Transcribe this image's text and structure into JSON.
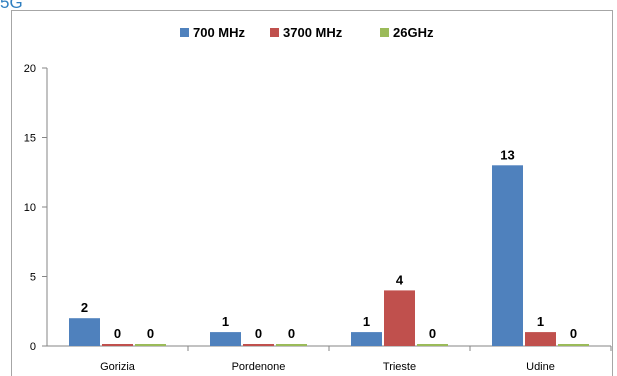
{
  "header": {
    "fragment": "5G"
  },
  "chart_data": {
    "type": "bar",
    "categories": [
      "Gorizia",
      "Pordenone",
      "Trieste",
      "Udine"
    ],
    "series": [
      {
        "name": "700 MHz",
        "color": "#4f81bd",
        "values": [
          2,
          1,
          1,
          13
        ]
      },
      {
        "name": "3700 MHz",
        "color": "#c0504d",
        "values": [
          0,
          0,
          4,
          1
        ]
      },
      {
        "name": "26GHz",
        "color": "#9bbb59",
        "values": [
          0,
          0,
          0,
          0
        ]
      }
    ],
    "ylim": [
      0,
      20
    ],
    "yticks": [
      0,
      5,
      10,
      15,
      20
    ],
    "grid": false,
    "legend": "top-center"
  }
}
